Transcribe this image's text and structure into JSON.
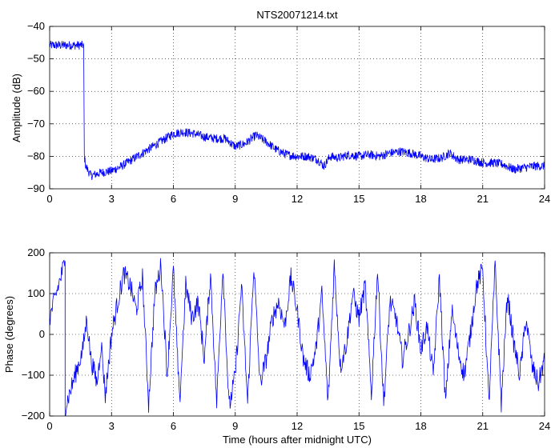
{
  "chart_data": [
    {
      "type": "line",
      "title": "NTS20071214.txt",
      "xlabel": "",
      "ylabel": "Amplitude (dB)",
      "xlim": [
        0,
        24
      ],
      "ylim": [
        -90,
        -40
      ],
      "grid": true,
      "x_ticks": [
        0,
        3,
        6,
        9,
        12,
        15,
        18,
        21,
        24
      ],
      "y_ticks": [
        -90,
        -80,
        -70,
        -60,
        -50,
        -40
      ],
      "x_tick_labels": [
        "0",
        "3",
        "6",
        "9",
        "12",
        "15",
        "18",
        "21",
        "24"
      ],
      "y_tick_labels": [
        "−90",
        "−80",
        "−70",
        "−60",
        "−50",
        "−40"
      ],
      "color": "#0000ff",
      "series": [
        {
          "points": [
            [
              0,
              -45.8
            ],
            [
              1.65,
              -45.8
            ],
            [
              1.65,
              -47
            ],
            [
              1.68,
              -80
            ],
            [
              1.75,
              -83
            ],
            [
              2.0,
              -86
            ],
            [
              2.5,
              -85
            ],
            [
              3.0,
              -84.5
            ],
            [
              3.5,
              -83
            ],
            [
              4.0,
              -81
            ],
            [
              4.5,
              -79
            ],
            [
              5.0,
              -77
            ],
            [
              5.5,
              -75
            ],
            [
              6.0,
              -73
            ],
            [
              6.5,
              -72.5
            ],
            [
              7.0,
              -73
            ],
            [
              7.5,
              -74
            ],
            [
              8.0,
              -74.5
            ],
            [
              8.5,
              -74.5
            ],
            [
              9.0,
              -77
            ],
            [
              9.5,
              -76
            ],
            [
              10.0,
              -73.5
            ],
            [
              10.5,
              -75.5
            ],
            [
              11.0,
              -78
            ],
            [
              11.5,
              -79.5
            ],
            [
              12.0,
              -80
            ],
            [
              12.5,
              -80
            ],
            [
              13.0,
              -81
            ],
            [
              13.3,
              -83
            ],
            [
              13.6,
              -80
            ],
            [
              14.0,
              -80.5
            ],
            [
              14.5,
              -79.5
            ],
            [
              15.0,
              -80
            ],
            [
              15.5,
              -79.5
            ],
            [
              16.0,
              -80
            ],
            [
              16.5,
              -79
            ],
            [
              17.0,
              -78.5
            ],
            [
              17.5,
              -79
            ],
            [
              18.0,
              -80
            ],
            [
              18.5,
              -81
            ],
            [
              19.0,
              -80.5
            ],
            [
              19.4,
              -79
            ],
            [
              19.8,
              -81
            ],
            [
              20.5,
              -81
            ],
            [
              21.0,
              -82
            ],
            [
              21.5,
              -82
            ],
            [
              22.0,
              -82.5
            ],
            [
              22.5,
              -84
            ],
            [
              23.0,
              -83.5
            ],
            [
              23.5,
              -83
            ],
            [
              24.0,
              -83
            ]
          ],
          "noise": 1.4
        }
      ]
    },
    {
      "type": "line",
      "title": "",
      "xlabel": "Time (hours after midnight UTC)",
      "ylabel": "Phase (degrees)",
      "xlim": [
        0,
        24
      ],
      "ylim": [
        -200,
        200
      ],
      "grid": true,
      "x_ticks": [
        0,
        3,
        6,
        9,
        12,
        15,
        18,
        21,
        24
      ],
      "y_ticks": [
        -200,
        -100,
        0,
        100,
        200
      ],
      "x_tick_labels": [
        "0",
        "3",
        "6",
        "9",
        "12",
        "15",
        "18",
        "21",
        "24"
      ],
      "y_tick_labels": [
        "−200",
        "−100",
        "0",
        "100",
        "200"
      ],
      "color": "#0000ff",
      "series": [
        {
          "points": [
            [
              0,
              40
            ],
            [
              0.75,
              180
            ],
            [
              0.75,
              -180
            ],
            [
              1.6,
              -40
            ],
            [
              1.8,
              40
            ],
            [
              2.0,
              -60
            ],
            [
              2.3,
              -120
            ],
            [
              2.5,
              -20
            ],
            [
              2.7,
              -150
            ],
            [
              3.0,
              0
            ],
            [
              3.3,
              80
            ],
            [
              3.6,
              150
            ],
            [
              3.9,
              120
            ],
            [
              4.2,
              60
            ],
            [
              4.5,
              140
            ],
            [
              4.8,
              -170
            ],
            [
              5.1,
              100
            ],
            [
              5.4,
              170
            ],
            [
              5.7,
              -100
            ],
            [
              6.0,
              160
            ],
            [
              6.3,
              -170
            ],
            [
              6.6,
              120
            ],
            [
              6.9,
              40
            ],
            [
              7.2,
              80
            ],
            [
              7.5,
              -60
            ],
            [
              7.8,
              150
            ],
            [
              8.1,
              -170
            ],
            [
              8.4,
              170
            ],
            [
              8.7,
              -180
            ],
            [
              9.0,
              -100
            ],
            [
              9.3,
              120
            ],
            [
              9.6,
              -170
            ],
            [
              9.9,
              170
            ],
            [
              10.2,
              -120
            ],
            [
              10.5,
              -60
            ],
            [
              10.8,
              40
            ],
            [
              11.1,
              80
            ],
            [
              11.4,
              20
            ],
            [
              11.7,
              140
            ],
            [
              12.0,
              60
            ],
            [
              12.3,
              -60
            ],
            [
              12.6,
              -100
            ],
            [
              12.9,
              -40
            ],
            [
              13.2,
              100
            ],
            [
              13.5,
              -170
            ],
            [
              13.8,
              170
            ],
            [
              14.1,
              -80
            ],
            [
              14.4,
              -20
            ],
            [
              14.7,
              100
            ],
            [
              15.0,
              40
            ],
            [
              15.3,
              120
            ],
            [
              15.6,
              -150
            ],
            [
              15.9,
              160
            ],
            [
              16.2,
              -170
            ],
            [
              16.5,
              80
            ],
            [
              16.8,
              40
            ],
            [
              17.1,
              -60
            ],
            [
              17.4,
              0
            ],
            [
              17.7,
              80
            ],
            [
              18.0,
              -40
            ],
            [
              18.3,
              20
            ],
            [
              18.6,
              -100
            ],
            [
              18.9,
              140
            ],
            [
              19.2,
              -170
            ],
            [
              19.5,
              60
            ],
            [
              19.8,
              -40
            ],
            [
              20.1,
              -100
            ],
            [
              20.4,
              0
            ],
            [
              20.7,
              120
            ],
            [
              21.0,
              160
            ],
            [
              21.3,
              -170
            ],
            [
              21.6,
              170
            ],
            [
              21.9,
              -170
            ],
            [
              22.2,
              100
            ],
            [
              22.5,
              -20
            ],
            [
              22.8,
              -100
            ],
            [
              23.1,
              40
            ],
            [
              23.4,
              -80
            ],
            [
              23.7,
              -120
            ],
            [
              24.0,
              -60
            ]
          ],
          "noise": 25
        }
      ]
    }
  ]
}
